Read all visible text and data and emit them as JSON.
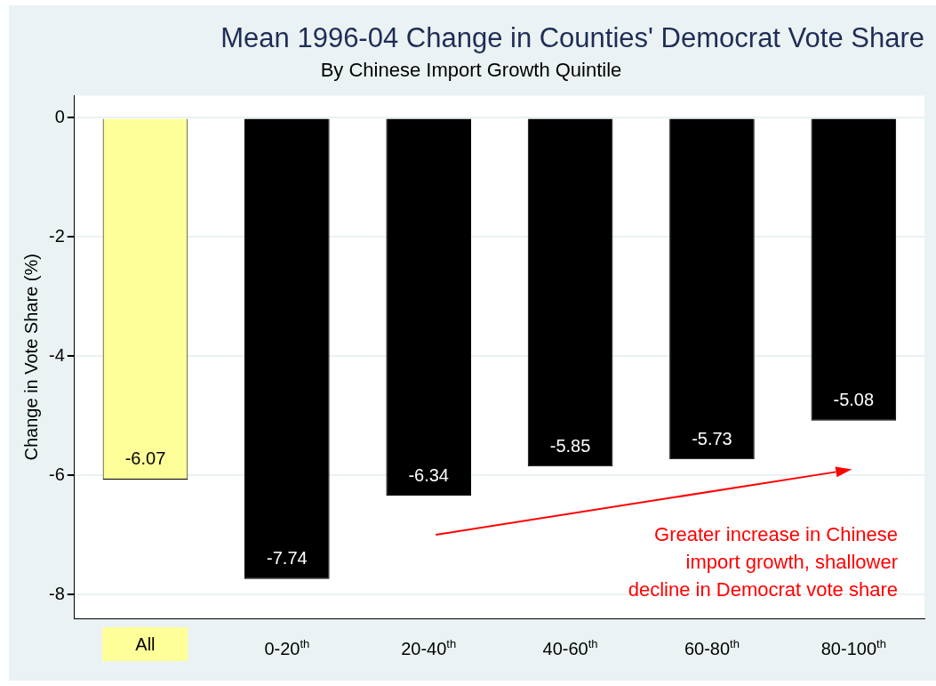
{
  "chart_data": {
    "type": "bar",
    "title": "Mean 1996-04 Change in Counties' Democrat Vote Share",
    "subtitle": "By Chinese Import Growth Quintile",
    "ylabel": "Change in Vote Share (%)",
    "categories": [
      "All",
      "0-20$^{th}$",
      "20-40$^{th}$",
      "40-60$^{th}$",
      "60-80$^{th}$",
      "80-100$^{th}$"
    ],
    "values": [
      -6.07,
      -7.74,
      -6.34,
      -5.85,
      -5.73,
      -5.08
    ],
    "colors": [
      "#ffff99",
      "#000000",
      "#000000",
      "#000000",
      "#000000",
      "#000000"
    ],
    "ylim": [
      -8.4,
      0.37
    ],
    "yticks": [
      -8,
      -6,
      -4,
      -2,
      0
    ],
    "grid": "y",
    "data_labels": true,
    "annotations": [
      "Greater increase in Chinese\nimport growth, shallower\ndecline in Democrat vote share"
    ]
  }
}
